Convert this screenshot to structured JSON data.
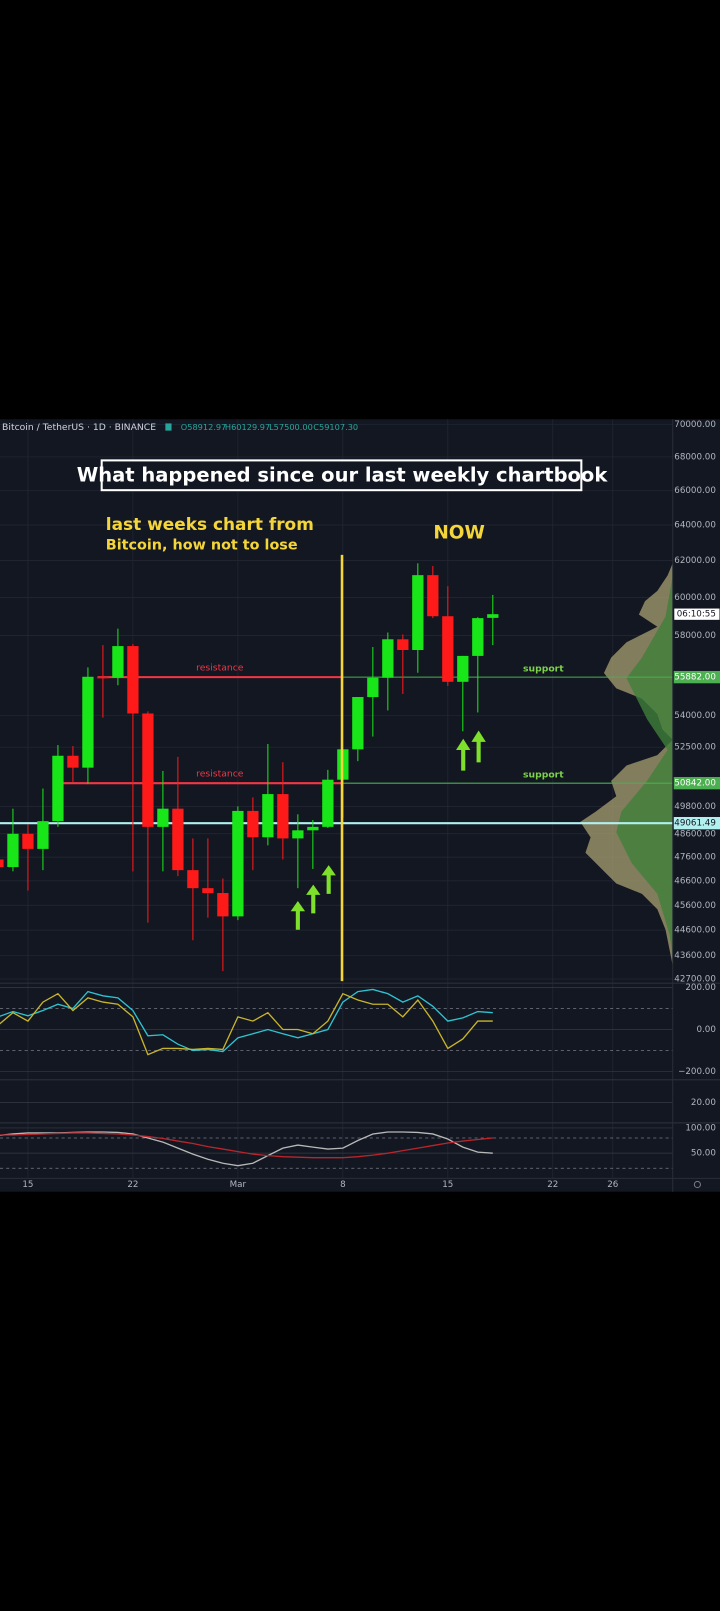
{
  "header": {
    "symbol": "Bitcoin / TetherUS · 1D · BINANCE",
    "ohlc": [
      "O58912.97",
      "H60129.97",
      "L57500.00",
      "C59107.30"
    ]
  },
  "annotations": {
    "title": "What happened since our last weekly chartbook",
    "note_1": "last weeks chart from",
    "note_2": "Bitcoin, how not to lose",
    "now": "NOW",
    "resistance": [
      "resistance",
      "resistance"
    ],
    "support": [
      "support",
      "support"
    ]
  },
  "chart_data": {
    "type": "candlestick",
    "log_scale": true,
    "grid": true,
    "up_color": "#19e619",
    "down_color": "#ff1a1a",
    "categories": [
      null,
      null,
      "15",
      null,
      null,
      null,
      null,
      null,
      null,
      "22",
      null,
      null,
      null,
      null,
      null,
      null,
      "Mar",
      null,
      null,
      null,
      null,
      null,
      null,
      "8",
      null,
      null,
      null,
      null,
      null,
      null,
      "15",
      null,
      null,
      null,
      null,
      null,
      null,
      "22",
      null,
      null,
      null,
      "26",
      null,
      null,
      null,
      null
    ],
    "open": [
      47500,
      47180,
      48600,
      47950,
      49150,
      52100,
      51550,
      55900,
      55850,
      57450,
      54100,
      48900,
      49700,
      47050,
      46300,
      46100,
      45150,
      49600,
      48450,
      50350,
      48400,
      48750,
      48900,
      51000,
      52400,
      54900,
      55850,
      57800,
      57250,
      61200,
      59000,
      55650,
      56950,
      58912.97,
      null,
      null,
      null,
      null,
      null,
      null,
      null,
      null,
      null,
      null,
      null,
      null
    ],
    "high": [
      48200,
      49700,
      49000,
      50600,
      52600,
      52550,
      56370,
      57500,
      58350,
      57550,
      54200,
      51400,
      52050,
      48400,
      48400,
      46700,
      49800,
      50200,
      52650,
      51800,
      49450,
      49200,
      51450,
      52400,
      54900,
      57400,
      58150,
      58050,
      61850,
      61700,
      60600,
      56950,
      58950,
      60129.97,
      null,
      null,
      null,
      null,
      null,
      null,
      null,
      null,
      null,
      null,
      null,
      null
    ],
    "low": [
      46300,
      47000,
      46200,
      47050,
      48900,
      50900,
      50800,
      53900,
      55480,
      47000,
      44900,
      47000,
      46800,
      44200,
      45100,
      43000,
      45000,
      47050,
      48100,
      47500,
      46300,
      47100,
      48850,
      49300,
      51850,
      53000,
      54250,
      55050,
      56100,
      58900,
      55450,
      53250,
      54150,
      57500,
      null,
      null,
      null,
      null,
      null,
      null,
      null,
      null,
      null,
      null,
      null,
      null
    ],
    "close": [
      47180,
      48600,
      47950,
      49150,
      52100,
      51550,
      55900,
      55850,
      57450,
      54100,
      48900,
      49700,
      47050,
      46300,
      46100,
      45150,
      49600,
      48450,
      50350,
      48400,
      48750,
      48900,
      51000,
      52400,
      54900,
      55850,
      57800,
      57250,
      61200,
      59000,
      55650,
      56950,
      58900,
      59107.3,
      null,
      null,
      null,
      null,
      null,
      null,
      null,
      null,
      null,
      null,
      null,
      null
    ],
    "ylim": [
      42540,
      70320
    ],
    "yticks": [
      {
        "value": 70000,
        "label": "70000.00"
      },
      {
        "value": 68000,
        "label": "68000.00"
      },
      {
        "value": 66000,
        "label": "66000.00"
      },
      {
        "value": 64000,
        "label": "64000.00"
      },
      {
        "value": 62000,
        "label": "62000.00"
      },
      {
        "value": 60000,
        "label": "60000.00"
      },
      {
        "value": 58000,
        "label": "58000.00"
      },
      {
        "value": 54000,
        "label": "54000.00"
      },
      {
        "value": 52500,
        "label": "52500.00"
      },
      {
        "value": 49800,
        "label": "49800.00"
      },
      {
        "value": 48600,
        "label": "48600.00"
      },
      {
        "value": 47600,
        "label": "47600.00"
      },
      {
        "value": 46600,
        "label": "46600.00"
      },
      {
        "value": 45600,
        "label": "45600.00"
      },
      {
        "value": 44600,
        "label": "44600.00"
      },
      {
        "value": 43600,
        "label": "43600.00"
      },
      {
        "value": 42700,
        "label": "42700.00"
      }
    ],
    "levels": [
      {
        "value": 55882,
        "label": "55882.00",
        "color": "#4caf50"
      },
      {
        "value": 50842,
        "label": "50842.00",
        "color": "#4caf50"
      },
      {
        "value": 49061.49,
        "label": "49061.49",
        "color": "#b2f0f0"
      }
    ],
    "countdown": "06:10:55",
    "indicators": [
      {
        "ylim": [
          -234,
          215
        ],
        "yticks": [
          {
            "value": 200,
            "label": "200.00"
          },
          {
            "value": 0,
            "label": "0.00"
          },
          {
            "value": -200,
            "label": "−200.00"
          }
        ],
        "bands": [
          100,
          -100
        ],
        "series": [
          {
            "color": "#2fc3cf",
            "values": [
              60,
              85,
              65,
              90,
              120,
              100,
              180,
              160,
              150,
              90,
              -30,
              -25,
              -70,
              -100,
              -95,
              -105,
              -40,
              -20,
              0,
              -20,
              -40,
              -20,
              0,
              130,
              180,
              190,
              170,
              130,
              160,
              110,
              40,
              55,
              85,
              80,
              null,
              null,
              null,
              null,
              null,
              null,
              null,
              null,
              null,
              null,
              null,
              null
            ]
          },
          {
            "color": "#c9b52a",
            "values": [
              20,
              80,
              40,
              130,
              170,
              90,
              150,
              130,
              120,
              60,
              -120,
              -90,
              -90,
              -95,
              -90,
              -95,
              60,
              40,
              80,
              0,
              0,
              -20,
              40,
              170,
              140,
              120,
              120,
              60,
              140,
              40,
              -90,
              -45,
              40,
              40,
              null,
              null,
              null,
              null,
              null,
              null,
              null,
              null,
              null,
              null,
              null,
              null
            ]
          }
        ]
      },
      {
        "ylim": [
          0,
          40
        ],
        "yticks": [
          {
            "value": 20,
            "label": "20.00"
          }
        ],
        "bands": [],
        "series": []
      },
      {
        "ylim": [
          0,
          108
        ],
        "yticks": [
          {
            "value": 100,
            "label": "100.00"
          },
          {
            "value": 50,
            "label": "50.00"
          }
        ],
        "bands": [
          80,
          20
        ],
        "series": [
          {
            "color": "#b8b8b8",
            "values": [
              85,
              88,
              90,
              90,
              90,
              91,
              92,
              92,
              91,
              88,
              80,
              72,
              60,
              48,
              38,
              30,
              25,
              30,
              45,
              60,
              66,
              62,
              58,
              60,
              75,
              88,
              92,
              92,
              91,
              88,
              78,
              62,
              52,
              50,
              null,
              null,
              null,
              null,
              null,
              null,
              null,
              null,
              null,
              null,
              null,
              null
            ]
          },
          {
            "color": "#b8262c",
            "values": [
              86,
              86,
              87,
              88,
              89,
              90,
              90,
              89,
              88,
              86,
              83,
              79,
              74,
              69,
              63,
              58,
              53,
              48,
              45,
              43,
              42,
              41,
              41,
              41,
              43,
              46,
              50,
              55,
              60,
              65,
              70,
              74,
              77,
              80,
              null,
              null,
              null,
              null,
              null,
              null,
              null,
              null,
              null,
              null,
              null,
              null
            ]
          }
        ]
      }
    ]
  }
}
